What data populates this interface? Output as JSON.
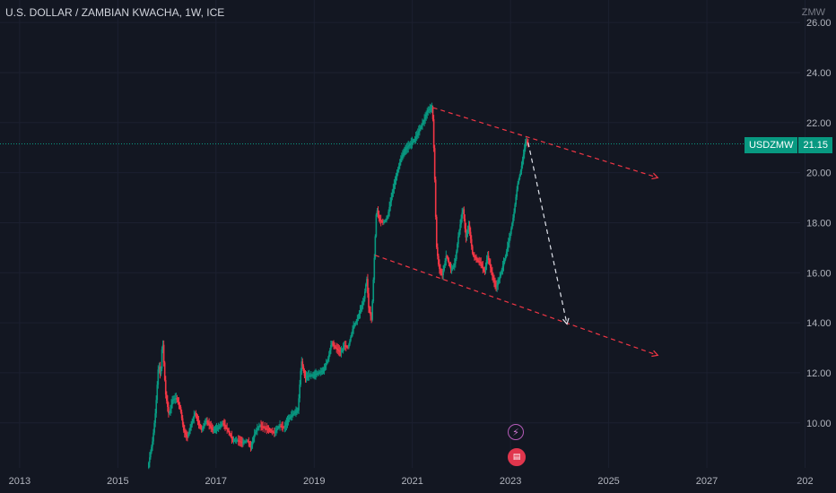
{
  "header": {
    "title": "U.S. DOLLAR / ZAMBIAN KWACHA, 1W, ICE",
    "currency": "ZMW"
  },
  "price_badge": {
    "symbol": "USDZMW",
    "last_price": "21.15"
  },
  "events": {
    "split_icon": "lightning-icon",
    "dividend_icon": "flag-icon"
  },
  "colors": {
    "background": "#131722",
    "up": "#089981",
    "down": "#f23645",
    "trendline": "#f23645",
    "projection": "#e0e3eb",
    "last_price_line": "#089981",
    "axis_text": "#b2b5be"
  },
  "chart_data": {
    "type": "candlestick",
    "symbol": "USDZMW",
    "interval": "1W",
    "x_axis": {
      "labels": [
        "2013",
        "2015",
        "2017",
        "2019",
        "2021",
        "2023",
        "2025",
        "2027",
        "202"
      ],
      "range": [
        2012.6,
        2028.9
      ]
    },
    "y_axis": {
      "labels": [
        "26.00",
        "24.00",
        "22.00",
        "20.00",
        "18.00",
        "16.00",
        "14.00",
        "12.00",
        "10.00"
      ],
      "range": [
        8.2,
        26.9
      ],
      "position": "right"
    },
    "last_price": 21.15,
    "price_path": [
      [
        2015.62,
        8.2
      ],
      [
        2015.72,
        9.3
      ],
      [
        2015.78,
        10.5
      ],
      [
        2015.84,
        12.4
      ],
      [
        2015.88,
        11.8
      ],
      [
        2015.92,
        13.4
      ],
      [
        2015.98,
        11.2
      ],
      [
        2016.05,
        10.3
      ],
      [
        2016.12,
        10.9
      ],
      [
        2016.2,
        11.0
      ],
      [
        2016.28,
        10.6
      ],
      [
        2016.35,
        9.7
      ],
      [
        2016.42,
        9.4
      ],
      [
        2016.5,
        9.9
      ],
      [
        2016.58,
        10.4
      ],
      [
        2016.65,
        10.0
      ],
      [
        2016.72,
        9.7
      ],
      [
        2016.8,
        10.1
      ],
      [
        2016.88,
        9.9
      ],
      [
        2016.95,
        9.7
      ],
      [
        2017.05,
        9.8
      ],
      [
        2017.15,
        10.0
      ],
      [
        2017.25,
        9.7
      ],
      [
        2017.35,
        9.3
      ],
      [
        2017.45,
        9.3
      ],
      [
        2017.55,
        9.2
      ],
      [
        2017.65,
        9.3
      ],
      [
        2017.72,
        9.0
      ],
      [
        2017.8,
        9.6
      ],
      [
        2017.9,
        9.9
      ],
      [
        2018.0,
        9.8
      ],
      [
        2018.1,
        9.7
      ],
      [
        2018.2,
        9.6
      ],
      [
        2018.3,
        9.9
      ],
      [
        2018.4,
        9.8
      ],
      [
        2018.5,
        10.2
      ],
      [
        2018.6,
        10.4
      ],
      [
        2018.68,
        10.5
      ],
      [
        2018.75,
        12.5
      ],
      [
        2018.82,
        11.8
      ],
      [
        2018.9,
        11.9
      ],
      [
        2019.0,
        11.9
      ],
      [
        2019.1,
        12.0
      ],
      [
        2019.2,
        12.1
      ],
      [
        2019.3,
        12.6
      ],
      [
        2019.36,
        13.2
      ],
      [
        2019.45,
        13.0
      ],
      [
        2019.55,
        12.8
      ],
      [
        2019.62,
        13.1
      ],
      [
        2019.7,
        13.0
      ],
      [
        2019.8,
        13.8
      ],
      [
        2019.88,
        14.1
      ],
      [
        2019.95,
        14.5
      ],
      [
        2020.02,
        14.9
      ],
      [
        2020.08,
        15.8
      ],
      [
        2020.12,
        14.6
      ],
      [
        2020.18,
        14.1
      ],
      [
        2020.24,
        16.8
      ],
      [
        2020.28,
        18.6
      ],
      [
        2020.34,
        18.1
      ],
      [
        2020.42,
        18.0
      ],
      [
        2020.5,
        18.2
      ],
      [
        2020.6,
        19.2
      ],
      [
        2020.7,
        20.0
      ],
      [
        2020.78,
        20.6
      ],
      [
        2020.86,
        20.9
      ],
      [
        2020.95,
        21.1
      ],
      [
        2021.05,
        21.3
      ],
      [
        2021.15,
        21.7
      ],
      [
        2021.25,
        22.1
      ],
      [
        2021.33,
        22.5
      ],
      [
        2021.42,
        22.6
      ],
      [
        2021.46,
        20.2
      ],
      [
        2021.5,
        17.1
      ],
      [
        2021.55,
        16.2
      ],
      [
        2021.62,
        15.9
      ],
      [
        2021.7,
        16.7
      ],
      [
        2021.8,
        16.1
      ],
      [
        2021.88,
        16.4
      ],
      [
        2021.95,
        17.5
      ],
      [
        2022.04,
        18.6
      ],
      [
        2022.1,
        17.4
      ],
      [
        2022.16,
        17.9
      ],
      [
        2022.24,
        16.7
      ],
      [
        2022.33,
        16.5
      ],
      [
        2022.4,
        16.4
      ],
      [
        2022.48,
        16.0
      ],
      [
        2022.54,
        16.7
      ],
      [
        2022.6,
        16.2
      ],
      [
        2022.66,
        15.7
      ],
      [
        2022.72,
        15.4
      ],
      [
        2022.8,
        15.9
      ],
      [
        2022.9,
        16.6
      ],
      [
        2023.0,
        17.5
      ],
      [
        2023.08,
        18.4
      ],
      [
        2023.15,
        19.5
      ],
      [
        2023.22,
        20.1
      ],
      [
        2023.28,
        20.8
      ],
      [
        2023.32,
        21.3
      ],
      [
        2023.36,
        21.15
      ]
    ],
    "annotations": {
      "upper_trendline": {
        "from": [
          2021.42,
          22.6
        ],
        "to": [
          2026.0,
          19.8
        ]
      },
      "lower_trendline": {
        "from": [
          2020.24,
          16.7
        ],
        "to": [
          2026.0,
          12.7
        ]
      },
      "projection": {
        "from": [
          2023.36,
          21.2
        ],
        "to": [
          2024.15,
          13.95
        ]
      }
    }
  }
}
